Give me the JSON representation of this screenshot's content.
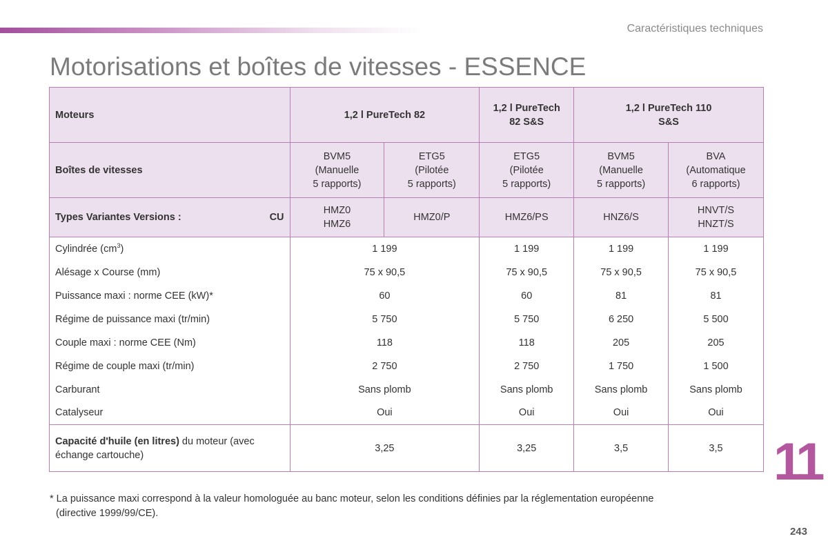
{
  "section_header": "Caractéristiques techniques",
  "title": "Motorisations et boîtes de vitesses - ESSENCE",
  "table": {
    "moteurs_label": "Moteurs",
    "engines": [
      "1,2 l PureTech 82",
      "1,2 l PureTech 82 S&S",
      "1,2 l PureTech 110 S&S"
    ],
    "engine_2_line1": "1,2 l PureTech",
    "engine_2_line2": "82 S&S",
    "engine_3_line1": "1,2 l PureTech 110",
    "engine_3_line2": "S&S",
    "boites_label": "Boîtes de vitesses",
    "gearboxes": [
      {
        "l1": "BVM5",
        "l2": "(Manuelle",
        "l3": "5 rapports)"
      },
      {
        "l1": "ETG5",
        "l2": "(Pilotée",
        "l3": "5 rapports)"
      },
      {
        "l1": "ETG5",
        "l2": "(Pilotée",
        "l3": "5 rapports)"
      },
      {
        "l1": "BVM5",
        "l2": "(Manuelle",
        "l3": "5 rapports)"
      },
      {
        "l1": "BVA",
        "l2": "(Automatique",
        "l3": "6 rapports)"
      }
    ],
    "types_label": "Types Variantes Versions :",
    "types_suffix": "CU",
    "types": [
      {
        "l1": "HMZ0",
        "l2": "HMZ6"
      },
      {
        "l1": "HMZ0/P",
        "l2": ""
      },
      {
        "l1": "HMZ6/PS",
        "l2": ""
      },
      {
        "l1": "HNZ6/S",
        "l2": ""
      },
      {
        "l1": "HNVT/S",
        "l2": "HNZT/S"
      }
    ],
    "rows": [
      {
        "label": "Cylindrée (cm",
        "label_sup": "3",
        "label_after": ")",
        "values": [
          "1 199",
          "1 199",
          "1 199",
          "1 199"
        ]
      },
      {
        "label": "Alésage x Course (mm)",
        "values": [
          "75 x 90,5",
          "75 x 90,5",
          "75 x 90,5",
          "75 x 90,5"
        ]
      },
      {
        "label": "Puissance maxi : norme CEE (kW)*",
        "values": [
          "60",
          "60",
          "81",
          "81"
        ]
      },
      {
        "label": "Régime de puissance maxi (tr/min)",
        "values": [
          "5 750",
          "5 750",
          "6 250",
          "5 500"
        ]
      },
      {
        "label": "Couple maxi : norme CEE (Nm)",
        "values": [
          "118",
          "118",
          "205",
          "205"
        ]
      },
      {
        "label": "Régime de couple maxi (tr/min)",
        "values": [
          "2 750",
          "2 750",
          "1 750",
          "1 500"
        ]
      },
      {
        "label": "Carburant",
        "values": [
          "Sans plomb",
          "Sans plomb",
          "Sans plomb",
          "Sans plomb"
        ]
      },
      {
        "label": "Catalyseur",
        "values": [
          "Oui",
          "Oui",
          "Oui",
          "Oui"
        ]
      }
    ],
    "oil": {
      "label_bold": "Capacité d'huile (en litres)",
      "label_rest": " du moteur (avec",
      "label_line2": "échange cartouche)",
      "values": [
        "3,25",
        "3,25",
        "3,5",
        "3,5"
      ]
    }
  },
  "footnote": {
    "line1": "* La puissance maxi correspond à la valeur homologuée au banc moteur, selon les conditions définies par la réglementation européenne",
    "line2": "(directive 1999/99/CE)."
  },
  "chapter_number": "11",
  "page_number": "243",
  "colors": {
    "accent": "#b3579f",
    "header_bg": "#ede0ee",
    "border": "#b57db0"
  }
}
